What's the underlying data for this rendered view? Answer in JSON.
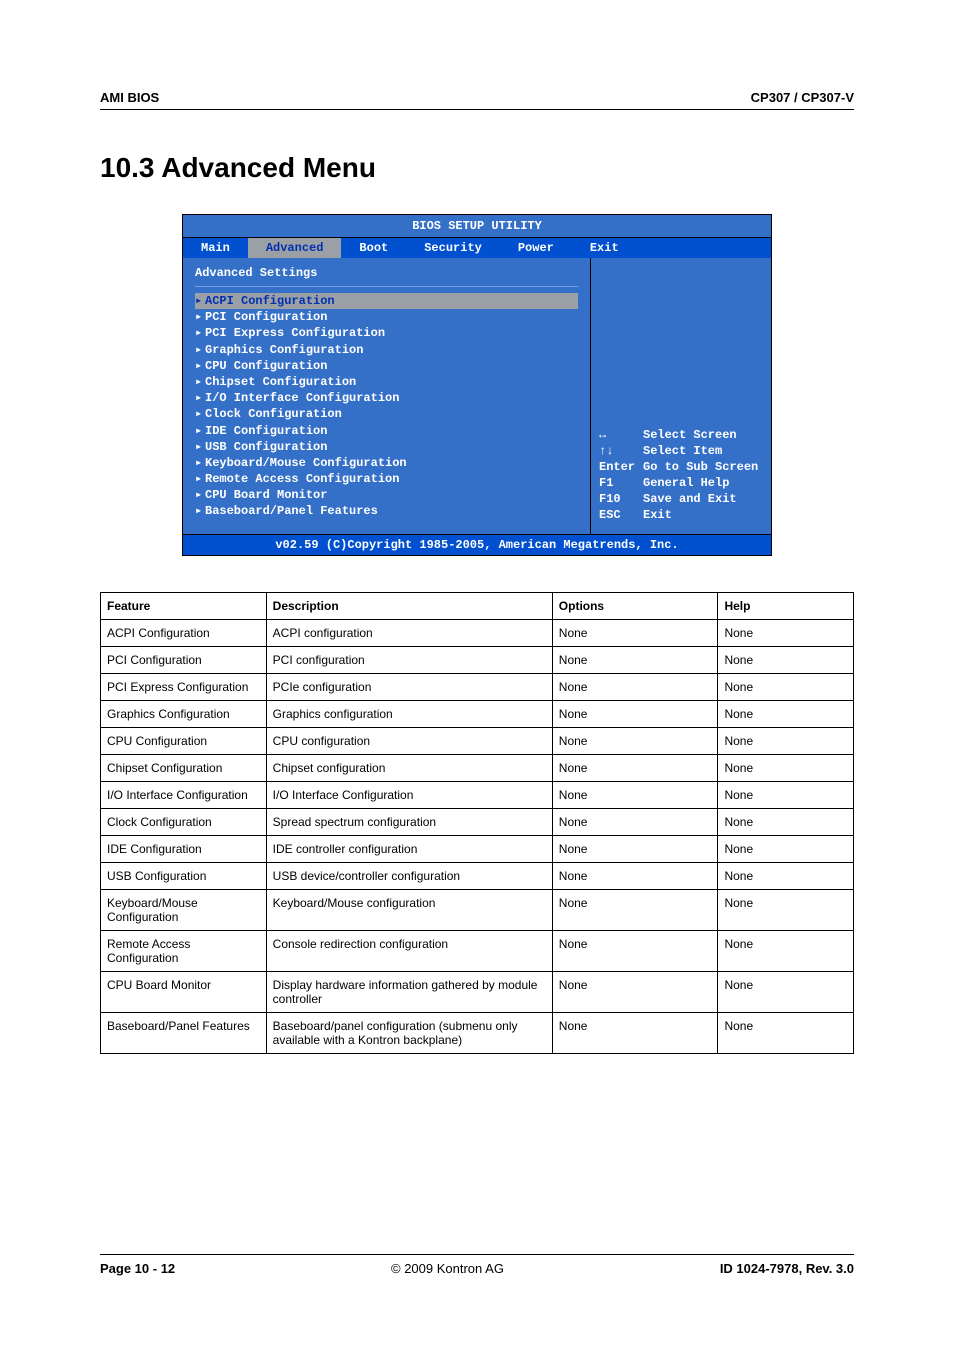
{
  "page": {
    "topbar_left": "AMI BIOS",
    "topbar_right": "CP307 / CP307-V",
    "heading": "10.3    Advanced Menu",
    "footer_left": "Page 10 - 12",
    "footer_right": "ID 1024-7978, Rev. 3.0",
    "footer_center": "© 2009 Kontron AG"
  },
  "bios": {
    "title": "BIOS SETUP UTILITY",
    "tabs": [
      "Main",
      "Advanced",
      "Boot",
      "Security",
      "Power",
      "Exit"
    ],
    "selected_tab": 1,
    "panel_title": "Advanced Settings",
    "menu_items": [
      "ACPI Configuration",
      "PCI Configuration",
      "PCI Express Configuration",
      "Graphics Configuration",
      "CPU Configuration",
      "Chipset Configuration",
      "I/O Interface Configuration",
      "Clock Configuration",
      "IDE Configuration",
      "USB Configuration",
      "Keyboard/Mouse Configuration",
      "Remote Access Configuration",
      "CPU Board Monitor",
      "Baseboard/Panel Features"
    ],
    "highlight_index": 0,
    "help": [
      {
        "key": "↔",
        "text": "Select Screen"
      },
      {
        "key": "↑↓",
        "text": "Select Item"
      },
      {
        "key": "Enter",
        "text": "Go to Sub Screen"
      },
      {
        "key": "F1",
        "text": "General Help"
      },
      {
        "key": "F10",
        "text": "Save and Exit"
      },
      {
        "key": "ESC",
        "text": "Exit"
      }
    ],
    "copyright": "v02.59 (C)Copyright 1985-2005, American Megatrends, Inc."
  },
  "table": {
    "columns": [
      "Feature",
      "Description",
      "Options",
      "Help"
    ],
    "rows": [
      [
        "ACPI Configuration",
        "ACPI configuration",
        "None",
        "None"
      ],
      [
        "PCI Configuration",
        "PCI configuration",
        "None",
        "None"
      ],
      [
        "PCI Express Configuration",
        "PCIe configuration",
        "None",
        "None"
      ],
      [
        "Graphics Configuration",
        "Graphics configuration",
        "None",
        "None"
      ],
      [
        "CPU Configuration",
        "CPU configuration",
        "None",
        "None"
      ],
      [
        "Chipset Configuration",
        "Chipset configuration",
        "None",
        "None"
      ],
      [
        "I/O Interface Configuration",
        "I/O Interface Configuration",
        "None",
        "None"
      ],
      [
        "Clock Configuration",
        "Spread spectrum configuration",
        "None",
        "None"
      ],
      [
        "IDE Configuration",
        "IDE controller configuration",
        "None",
        "None"
      ],
      [
        "USB Configuration",
        "USB device/controller configuration",
        "None",
        "None"
      ],
      [
        "Keyboard/Mouse Configuration",
        "Keyboard/Mouse configuration",
        "None",
        "None"
      ],
      [
        "Remote Access Configuration",
        "Console redirection configuration",
        "None",
        "None"
      ],
      [
        "CPU Board Monitor",
        "Display hardware information gathered by module controller",
        "None",
        "None"
      ],
      [
        "Baseboard/Panel Features",
        "Baseboard/panel configuration (submenu only available with a Kontron backplane)",
        "None",
        "None"
      ]
    ],
    "column_widths": [
      "22%",
      "38%",
      "22%",
      "18%"
    ]
  },
  "colors": {
    "bios_bg": "#3470c8",
    "bios_bar": "#0050d0",
    "bios_selected": "#9aa0a6",
    "text_white": "#ffffff",
    "border": "#000000",
    "highlight_fg": "#0030b0"
  }
}
